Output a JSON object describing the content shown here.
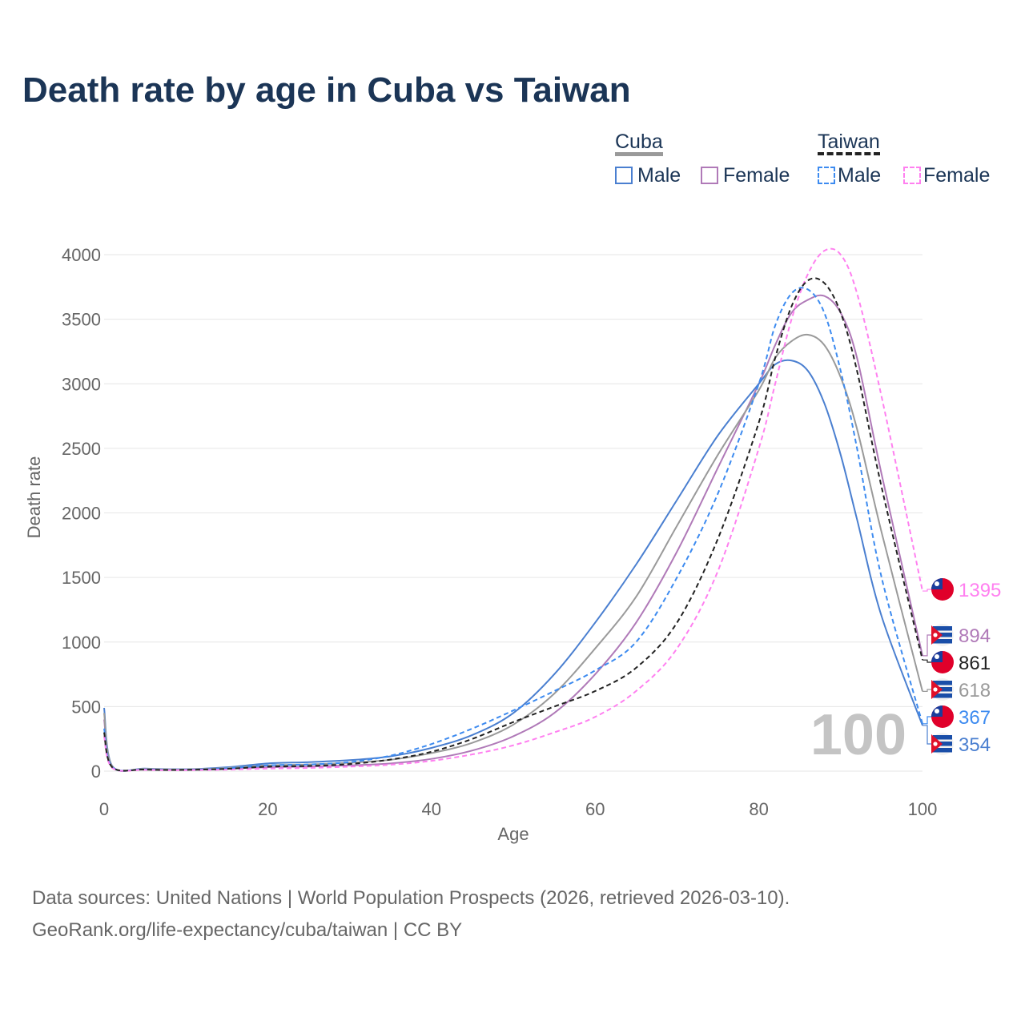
{
  "chart_data": {
    "type": "line",
    "title": "Death rate by age in Cuba vs Taiwan",
    "xlabel": "Age",
    "ylabel": "Death rate",
    "xlim": [
      0,
      100
    ],
    "ylim": [
      0,
      4000
    ],
    "xticks": [
      "0",
      "20",
      "40",
      "60",
      "80",
      "100"
    ],
    "yticks": [
      "0",
      "500",
      "1000",
      "1500",
      "2000",
      "2500",
      "3000",
      "3500",
      "4000"
    ],
    "watermark": "100",
    "x": [
      0,
      1,
      5,
      10,
      15,
      20,
      25,
      30,
      35,
      40,
      45,
      50,
      55,
      60,
      65,
      70,
      75,
      80,
      82,
      84,
      86,
      88,
      90,
      92,
      95,
      100
    ],
    "series": [
      {
        "name": "Cuba Female",
        "country": "Cuba",
        "color": "#b07ab8",
        "dash": false,
        "end_label": "894",
        "values": [
          400,
          35,
          15,
          12,
          20,
          30,
          35,
          45,
          60,
          95,
          160,
          270,
          450,
          750,
          1150,
          1700,
          2350,
          3000,
          3300,
          3550,
          3650,
          3680,
          3550,
          3200,
          2300,
          894
        ]
      },
      {
        "name": "Cuba Male",
        "country": "Cuba",
        "color": "#4a7fd0",
        "dash": false,
        "end_label": "354",
        "values": [
          490,
          40,
          20,
          15,
          30,
          60,
          70,
          85,
          115,
          180,
          280,
          450,
          750,
          1150,
          1600,
          2100,
          2600,
          3000,
          3150,
          3180,
          3100,
          2850,
          2450,
          1950,
          1200,
          354
        ]
      },
      {
        "name": "Cuba",
        "country": "Cuba",
        "color": "#9a9a9a",
        "dash": false,
        "end_label": "618",
        "values": [
          450,
          38,
          18,
          13,
          25,
          45,
          52,
          65,
          88,
          140,
          220,
          360,
          600,
          950,
          1350,
          1900,
          2450,
          2950,
          3200,
          3330,
          3380,
          3300,
          3050,
          2650,
          1850,
          618
        ]
      },
      {
        "name": "Taiwan Male",
        "country": "Taiwan",
        "color": "#3d8bf0",
        "dash": true,
        "end_label": "367",
        "values": [
          330,
          32,
          13,
          10,
          22,
          45,
          52,
          70,
          120,
          210,
          330,
          470,
          620,
          780,
          1000,
          1500,
          2150,
          3000,
          3450,
          3700,
          3730,
          3550,
          3100,
          2500,
          1500,
          367
        ]
      },
      {
        "name": "Taiwan Female",
        "country": "Taiwan",
        "color": "#ff80f0",
        "dash": true,
        "end_label": "1395",
        "values": [
          270,
          25,
          10,
          8,
          12,
          20,
          25,
          35,
          50,
          80,
          130,
          200,
          300,
          420,
          620,
          950,
          1550,
          2500,
          3000,
          3500,
          3850,
          4030,
          4000,
          3700,
          2900,
          1395
        ]
      },
      {
        "name": "Taiwan",
        "country": "Taiwan",
        "color": "#222222",
        "dash": true,
        "end_label": "861",
        "values": [
          300,
          30,
          12,
          10,
          18,
          35,
          40,
          55,
          90,
          150,
          250,
          380,
          500,
          620,
          800,
          1150,
          1800,
          2700,
          3200,
          3600,
          3800,
          3780,
          3550,
          3100,
          2200,
          861
        ]
      }
    ],
    "legend": {
      "placement": "top-right",
      "groups": [
        {
          "label": "Cuba",
          "items": [
            "Male",
            "Female"
          ]
        },
        {
          "label": "Taiwan",
          "items": [
            "Male",
            "Female"
          ]
        }
      ]
    }
  },
  "footer": {
    "line1": "Data sources: United Nations | World Population Prospects (2026, retrieved 2026-03-10).",
    "line2": "GeoRank.org/life-expectancy/cuba/taiwan | CC BY"
  }
}
